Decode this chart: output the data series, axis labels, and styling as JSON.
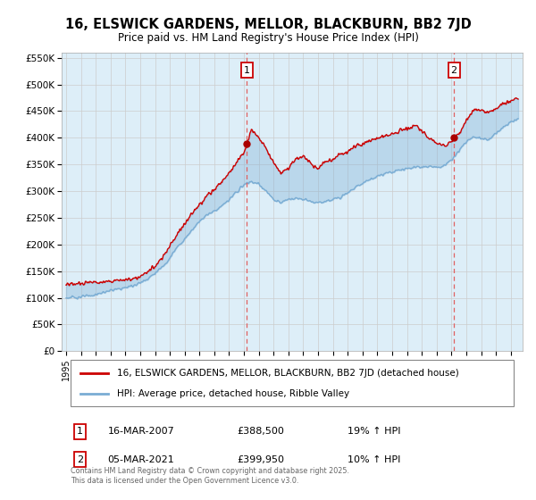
{
  "title": "16, ELSWICK GARDENS, MELLOR, BLACKBURN, BB2 7JD",
  "subtitle": "Price paid vs. HM Land Registry's House Price Index (HPI)",
  "legend_line1": "16, ELSWICK GARDENS, MELLOR, BLACKBURN, BB2 7JD (detached house)",
  "legend_line2": "HPI: Average price, detached house, Ribble Valley",
  "sale1_date": "16-MAR-2007",
  "sale1_price": "£388,500",
  "sale1_hpi": "19% ↑ HPI",
  "sale2_date": "05-MAR-2021",
  "sale2_price": "£399,950",
  "sale2_hpi": "10% ↑ HPI",
  "red_color": "#cc0000",
  "blue_color": "#7aadd4",
  "blue_fill": "#c8dff0",
  "dashed_color": "#e06060",
  "marker_color": "#aa0000",
  "background": "#ffffff",
  "grid_color": "#cccccc",
  "plot_bg": "#ddeef8",
  "ylim": [
    0,
    560000
  ],
  "yticks": [
    0,
    50000,
    100000,
    150000,
    200000,
    250000,
    300000,
    350000,
    400000,
    450000,
    500000,
    550000
  ],
  "ytick_labels": [
    "£0",
    "£50K",
    "£100K",
    "£150K",
    "£200K",
    "£250K",
    "£300K",
    "£350K",
    "£400K",
    "£450K",
    "£500K",
    "£550K"
  ],
  "sale1_x": 2007.2,
  "sale2_x": 2021.17,
  "sale1_y": 388500,
  "sale2_y": 399950,
  "xlim_left": 1994.7,
  "xlim_right": 2025.8,
  "copyright": "Contains HM Land Registry data © Crown copyright and database right 2025.\nThis data is licensed under the Open Government Licence v3.0.",
  "hpi_pts": [
    [
      1995.0,
      100000
    ],
    [
      1995.5,
      100500
    ],
    [
      1996.0,
      102000
    ],
    [
      1996.5,
      103000
    ],
    [
      1997.0,
      106000
    ],
    [
      1997.5,
      110000
    ],
    [
      1998.0,
      114000
    ],
    [
      1998.5,
      116000
    ],
    [
      1999.0,
      119000
    ],
    [
      1999.5,
      123000
    ],
    [
      2000.0,
      128000
    ],
    [
      2000.5,
      136000
    ],
    [
      2001.0,
      146000
    ],
    [
      2001.5,
      158000
    ],
    [
      2002.0,
      175000
    ],
    [
      2002.5,
      195000
    ],
    [
      2003.0,
      210000
    ],
    [
      2003.5,
      228000
    ],
    [
      2004.0,
      244000
    ],
    [
      2004.5,
      256000
    ],
    [
      2005.0,
      263000
    ],
    [
      2005.5,
      272000
    ],
    [
      2006.0,
      284000
    ],
    [
      2006.5,
      298000
    ],
    [
      2007.0,
      312000
    ],
    [
      2007.5,
      318000
    ],
    [
      2008.0,
      313000
    ],
    [
      2008.5,
      300000
    ],
    [
      2009.0,
      283000
    ],
    [
      2009.5,
      278000
    ],
    [
      2010.0,
      285000
    ],
    [
      2010.5,
      287000
    ],
    [
      2011.0,
      285000
    ],
    [
      2011.5,
      280000
    ],
    [
      2012.0,
      278000
    ],
    [
      2012.5,
      280000
    ],
    [
      2013.0,
      284000
    ],
    [
      2013.5,
      290000
    ],
    [
      2014.0,
      298000
    ],
    [
      2014.5,
      307000
    ],
    [
      2015.0,
      315000
    ],
    [
      2015.5,
      322000
    ],
    [
      2016.0,
      328000
    ],
    [
      2016.5,
      333000
    ],
    [
      2017.0,
      336000
    ],
    [
      2017.5,
      340000
    ],
    [
      2018.0,
      343000
    ],
    [
      2018.5,
      345000
    ],
    [
      2019.0,
      346000
    ],
    [
      2019.5,
      347000
    ],
    [
      2020.0,
      344000
    ],
    [
      2020.5,
      348000
    ],
    [
      2021.0,
      358000
    ],
    [
      2021.5,
      375000
    ],
    [
      2022.0,
      393000
    ],
    [
      2022.5,
      402000
    ],
    [
      2023.0,
      398000
    ],
    [
      2023.5,
      397000
    ],
    [
      2024.0,
      408000
    ],
    [
      2024.5,
      420000
    ],
    [
      2025.0,
      430000
    ],
    [
      2025.5,
      435000
    ]
  ],
  "red_pts": [
    [
      1995.0,
      125000
    ],
    [
      1995.5,
      126000
    ],
    [
      1996.0,
      127000
    ],
    [
      1996.5,
      128000
    ],
    [
      1997.0,
      129000
    ],
    [
      1997.5,
      130000
    ],
    [
      1998.0,
      131000
    ],
    [
      1998.5,
      132000
    ],
    [
      1999.0,
      133000
    ],
    [
      1999.5,
      135000
    ],
    [
      2000.0,
      138000
    ],
    [
      2000.5,
      148000
    ],
    [
      2001.0,
      160000
    ],
    [
      2001.5,
      176000
    ],
    [
      2002.0,
      197000
    ],
    [
      2002.5,
      220000
    ],
    [
      2003.0,
      238000
    ],
    [
      2003.5,
      258000
    ],
    [
      2004.0,
      276000
    ],
    [
      2004.5,
      291000
    ],
    [
      2005.0,
      303000
    ],
    [
      2005.5,
      318000
    ],
    [
      2006.0,
      335000
    ],
    [
      2006.5,
      355000
    ],
    [
      2007.0,
      374000
    ],
    [
      2007.2,
      388500
    ],
    [
      2007.5,
      416000
    ],
    [
      2008.0,
      400000
    ],
    [
      2008.5,
      380000
    ],
    [
      2009.0,
      352000
    ],
    [
      2009.5,
      335000
    ],
    [
      2010.0,
      342000
    ],
    [
      2010.5,
      360000
    ],
    [
      2011.0,
      365000
    ],
    [
      2011.5,
      352000
    ],
    [
      2012.0,
      342000
    ],
    [
      2012.5,
      355000
    ],
    [
      2013.0,
      360000
    ],
    [
      2013.5,
      368000
    ],
    [
      2014.0,
      375000
    ],
    [
      2014.5,
      383000
    ],
    [
      2015.0,
      388000
    ],
    [
      2015.5,
      394000
    ],
    [
      2016.0,
      398000
    ],
    [
      2016.5,
      403000
    ],
    [
      2017.0,
      407000
    ],
    [
      2017.5,
      413000
    ],
    [
      2018.0,
      418000
    ],
    [
      2018.5,
      424000
    ],
    [
      2019.0,
      412000
    ],
    [
      2019.5,
      398000
    ],
    [
      2020.0,
      390000
    ],
    [
      2020.5,
      385000
    ],
    [
      2021.0,
      393000
    ],
    [
      2021.17,
      399950
    ],
    [
      2021.5,
      408000
    ],
    [
      2022.0,
      432000
    ],
    [
      2022.5,
      452000
    ],
    [
      2023.0,
      453000
    ],
    [
      2023.5,
      447000
    ],
    [
      2024.0,
      455000
    ],
    [
      2024.5,
      463000
    ],
    [
      2025.0,
      470000
    ],
    [
      2025.5,
      474000
    ]
  ]
}
